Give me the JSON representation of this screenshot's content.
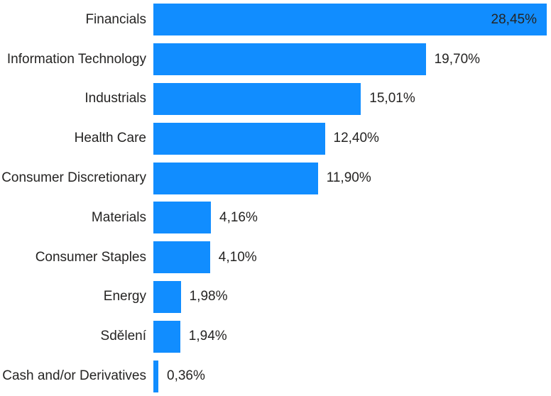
{
  "chart_data": {
    "type": "bar",
    "orientation": "horizontal",
    "title": "",
    "xlabel": "",
    "ylabel": "",
    "grid": false,
    "legend": false,
    "axes_visible": false,
    "background": "#FFFFFF",
    "bar_color": "#118DFF",
    "text_color": "#252423",
    "value_label_position": "end-of-bar, inside bar when bar nearly fills plot width",
    "xlim": [
      0,
      28.45
    ],
    "categories": [
      "Financials",
      "Information Technology",
      "Industrials",
      "Health Care",
      "Consumer Discretionary",
      "Materials",
      "Consumer Staples",
      "Energy",
      "Sdělení",
      "Cash and/or Derivatives"
    ],
    "values": [
      28.45,
      19.7,
      15.01,
      12.4,
      11.9,
      4.16,
      4.1,
      1.98,
      1.94,
      0.36
    ],
    "value_labels": [
      "28,45%",
      "19,70%",
      "15,01%",
      "12,40%",
      "11,90%",
      "4,16%",
      "4,10%",
      "1,98%",
      "1,94%",
      "0,36%"
    ]
  }
}
